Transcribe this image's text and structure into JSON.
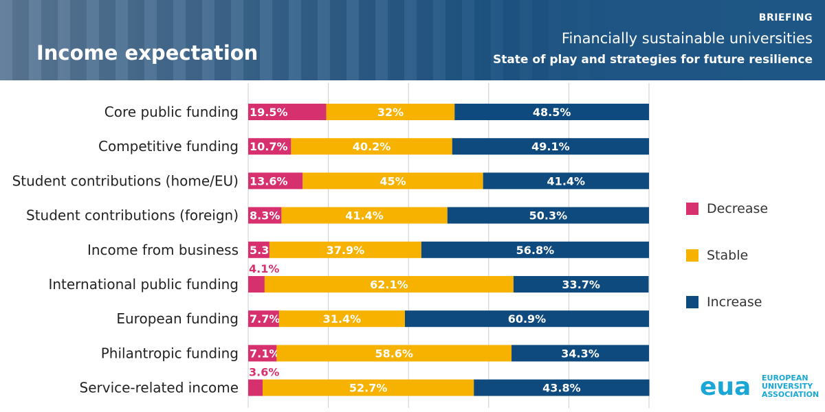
{
  "header": {
    "title": "Income expectation",
    "tag": "BRIEFING",
    "subtitle_1": "Financially sustainable universities",
    "subtitle_2": "State of play and strategies for future resilience"
  },
  "colors": {
    "decrease": "#d6306f",
    "stable": "#f7b200",
    "increase": "#0f4a7e"
  },
  "legend": [
    {
      "label": "Decrease",
      "color": "#d6306f"
    },
    {
      "label": "Stable",
      "color": "#f7b200"
    },
    {
      "label": "Increase",
      "color": "#0f4a7e"
    }
  ],
  "logo": {
    "mark": "eua",
    "lines": [
      "EUROPEAN",
      "UNIVERSITY",
      "ASSOCIATION"
    ]
  },
  "chart_data": {
    "type": "bar",
    "orientation": "horizontal",
    "stacked": true,
    "categories": [
      "Core public funding",
      "Competitive funding",
      "Student contributions (home/EU)",
      "Student contributions (foreign)",
      "Income from business",
      "International public funding",
      "European funding",
      "Philantropic funding",
      "Service-related income"
    ],
    "series": [
      {
        "name": "Decrease",
        "values": [
          19.5,
          10.7,
          13.6,
          8.3,
          5.3,
          4.1,
          7.7,
          7.1,
          3.6
        ]
      },
      {
        "name": "Stable",
        "values": [
          32,
          40.2,
          45,
          41.4,
          37.9,
          62.1,
          31.4,
          58.6,
          52.7
        ]
      },
      {
        "name": "Increase",
        "values": [
          48.5,
          49.1,
          41.4,
          50.3,
          56.8,
          33.7,
          60.9,
          34.3,
          43.8
        ]
      }
    ],
    "xlim": [
      0,
      100
    ],
    "grid": true,
    "legend_position": "right",
    "value_suffix": "%"
  }
}
